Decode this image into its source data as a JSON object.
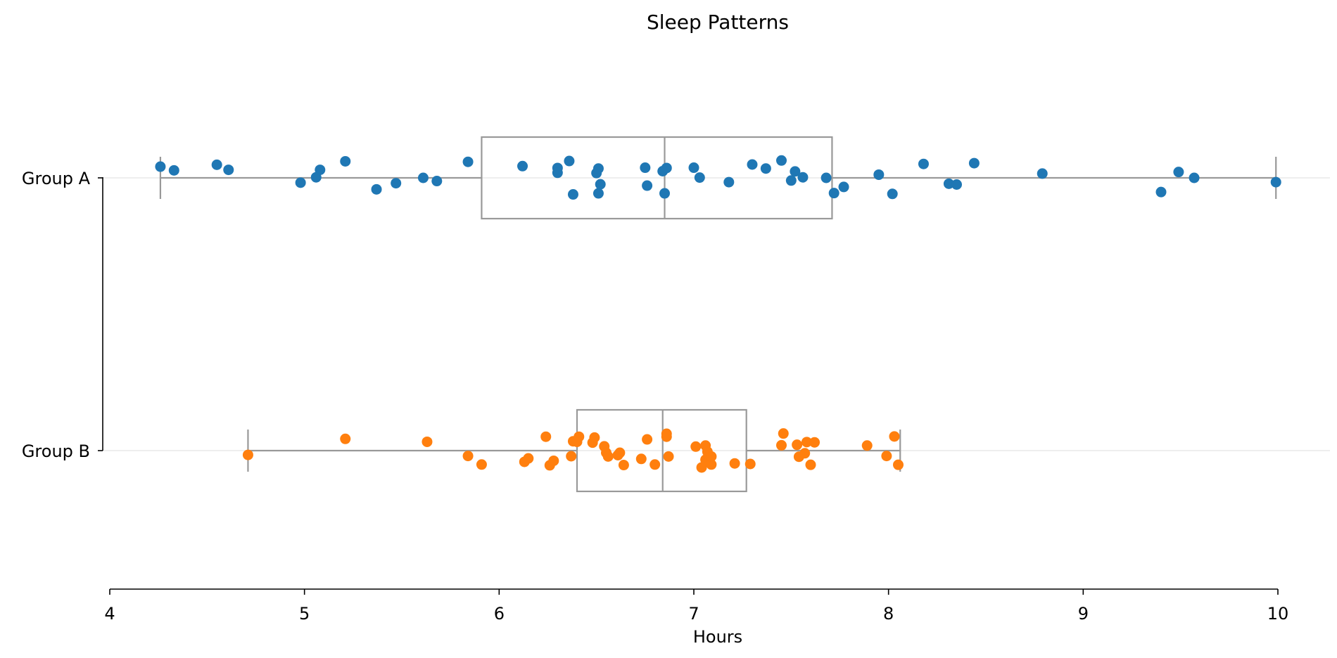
{
  "chart_data": {
    "type": "box",
    "title": "Sleep Patterns",
    "xlabel": "Hours",
    "ylabel": "",
    "xlim": [
      4,
      10
    ],
    "xticks": [
      4,
      5,
      6,
      7,
      8,
      9,
      10
    ],
    "categories": [
      "Group A",
      "Group B"
    ],
    "grid": "horizontal",
    "box_color": "#999999",
    "series": [
      {
        "category": "Group A",
        "color": "#1f77b4",
        "box": {
          "whisker_low": 4.26,
          "q1": 5.91,
          "median": 6.85,
          "q3": 7.71,
          "whisker_high": 9.99
        },
        "points": [
          [
            4.26,
            0.42
          ],
          [
            4.33,
            0.28
          ],
          [
            4.55,
            0.49
          ],
          [
            4.61,
            0.3
          ],
          [
            4.98,
            -0.18
          ],
          [
            5.06,
            0.02
          ],
          [
            5.08,
            0.3
          ],
          [
            5.21,
            0.62
          ],
          [
            5.37,
            -0.43
          ],
          [
            5.47,
            -0.2
          ],
          [
            5.61,
            0.0
          ],
          [
            5.68,
            -0.12
          ],
          [
            5.84,
            0.6
          ],
          [
            6.12,
            0.44
          ],
          [
            6.3,
            0.37
          ],
          [
            6.3,
            0.19
          ],
          [
            6.36,
            0.63
          ],
          [
            6.38,
            -0.62
          ],
          [
            6.5,
            0.18
          ],
          [
            6.51,
            -0.58
          ],
          [
            6.51,
            0.35
          ],
          [
            6.52,
            -0.24
          ],
          [
            6.75,
            0.38
          ],
          [
            6.76,
            -0.29
          ],
          [
            6.84,
            0.25
          ],
          [
            6.85,
            -0.58
          ],
          [
            6.86,
            0.37
          ],
          [
            7.0,
            0.38
          ],
          [
            7.03,
            0.01
          ],
          [
            7.18,
            -0.16
          ],
          [
            7.3,
            0.5
          ],
          [
            7.37,
            0.35
          ],
          [
            7.45,
            0.65
          ],
          [
            7.5,
            -0.1
          ],
          [
            7.52,
            0.24
          ],
          [
            7.56,
            0.02
          ],
          [
            7.68,
            0.0
          ],
          [
            7.72,
            -0.57
          ],
          [
            7.77,
            -0.34
          ],
          [
            7.95,
            0.12
          ],
          [
            8.02,
            -0.6
          ],
          [
            8.18,
            0.52
          ],
          [
            8.31,
            -0.22
          ],
          [
            8.35,
            -0.25
          ],
          [
            8.44,
            0.55
          ],
          [
            8.79,
            0.16
          ],
          [
            9.4,
            -0.53
          ],
          [
            9.49,
            0.22
          ],
          [
            9.57,
            0.0
          ],
          [
            9.99,
            -0.16
          ]
        ]
      },
      {
        "category": "Group B",
        "color": "#ff7f0e",
        "box": {
          "whisker_low": 4.71,
          "q1": 6.4,
          "median": 6.84,
          "q3": 7.27,
          "whisker_high": 8.06
        },
        "points": [
          [
            4.71,
            -0.16
          ],
          [
            5.21,
            0.44
          ],
          [
            5.63,
            0.33
          ],
          [
            5.84,
            -0.2
          ],
          [
            5.91,
            -0.52
          ],
          [
            6.13,
            -0.42
          ],
          [
            6.15,
            -0.29
          ],
          [
            6.24,
            0.52
          ],
          [
            6.26,
            -0.55
          ],
          [
            6.28,
            -0.38
          ],
          [
            6.37,
            -0.21
          ],
          [
            6.38,
            0.35
          ],
          [
            6.4,
            0.33
          ],
          [
            6.41,
            0.52
          ],
          [
            6.48,
            0.3
          ],
          [
            6.49,
            0.49
          ],
          [
            6.54,
            0.16
          ],
          [
            6.55,
            -0.08
          ],
          [
            6.56,
            -0.22
          ],
          [
            6.61,
            -0.17
          ],
          [
            6.62,
            -0.08
          ],
          [
            6.64,
            -0.54
          ],
          [
            6.73,
            -0.31
          ],
          [
            6.76,
            0.42
          ],
          [
            6.8,
            -0.52
          ],
          [
            6.86,
            0.52
          ],
          [
            6.86,
            0.63
          ],
          [
            6.87,
            -0.22
          ],
          [
            7.01,
            0.15
          ],
          [
            7.04,
            -0.63
          ],
          [
            7.06,
            0.19
          ],
          [
            7.06,
            -0.34
          ],
          [
            7.07,
            -0.04
          ],
          [
            7.08,
            -0.22
          ],
          [
            7.09,
            -0.52
          ],
          [
            7.09,
            -0.22
          ],
          [
            7.21,
            -0.48
          ],
          [
            7.29,
            -0.5
          ],
          [
            7.45,
            0.2
          ],
          [
            7.46,
            0.64
          ],
          [
            7.53,
            0.22
          ],
          [
            7.54,
            -0.23
          ],
          [
            7.57,
            -0.1
          ],
          [
            7.58,
            0.32
          ],
          [
            7.6,
            -0.53
          ],
          [
            7.62,
            0.31
          ],
          [
            7.89,
            0.19
          ],
          [
            7.99,
            -0.2
          ],
          [
            8.03,
            0.53
          ],
          [
            8.05,
            -0.53
          ]
        ]
      }
    ]
  }
}
